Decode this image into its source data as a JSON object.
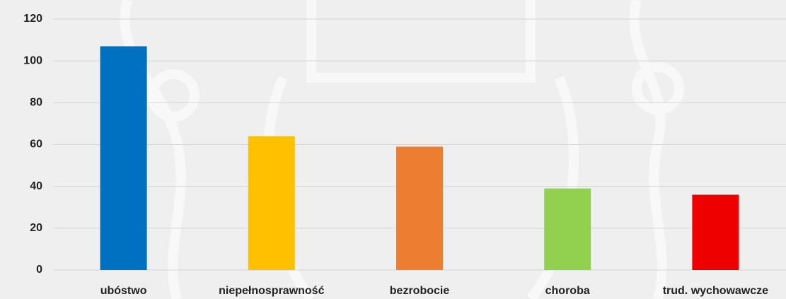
{
  "chart_data": {
    "type": "bar",
    "categories": [
      "ubóstwo",
      "niepełnosprawność",
      "bezrobocie",
      "choroba",
      "trud. wychowawcze"
    ],
    "values": [
      107,
      64,
      59,
      39,
      36
    ],
    "colors": [
      "#0070c0",
      "#ffc000",
      "#ed7d31",
      "#92d050",
      "#ee0000"
    ],
    "ylim": [
      0,
      120
    ],
    "yticks": [
      0,
      20,
      40,
      60,
      80,
      100,
      120
    ],
    "grid": true
  }
}
